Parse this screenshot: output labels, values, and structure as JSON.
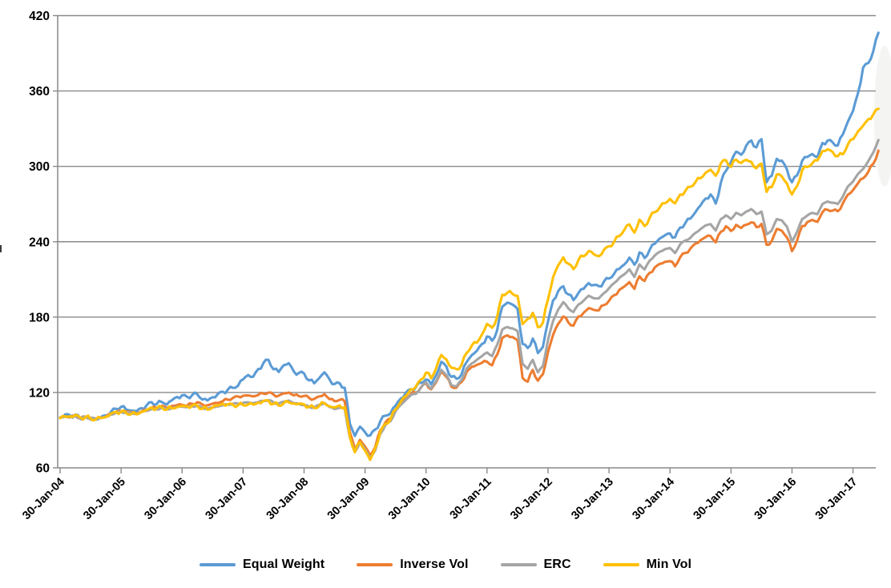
{
  "chart_data": {
    "type": "line",
    "title": "",
    "legend_position": "bottom",
    "grid": true,
    "axis_color": "#898989",
    "grid_color": "#8a8a8a",
    "text_color": "#000000",
    "y_axis": {
      "min": 60,
      "max": 420,
      "step": 60,
      "tick_labels": [
        "420",
        "360",
        "300",
        "240",
        "180",
        "120",
        "60"
      ]
    },
    "x_axis": {
      "tick_labels": [
        "30-Jan-04",
        "30-Jan-05",
        "30-Jan-06",
        "30-Jan-07",
        "30-Jan-08",
        "30-Jan-09",
        "30-Jan-10",
        "30-Jan-11",
        "30-Jan-12",
        "30-Jan-13",
        "30-Jan-14",
        "30-Jan-15",
        "30-Jan-16",
        "30-Jan-17"
      ],
      "points_per_tick": 12,
      "label_rotation_deg": -45
    },
    "series": [
      {
        "name": "Equal Weight",
        "color": "#5B9BD5",
        "values": [
          100,
          102,
          101,
          102,
          99,
          101,
          99,
          98.5,
          100,
          101,
          104,
          107,
          109,
          107,
          106,
          105,
          107,
          109,
          112,
          111,
          113,
          111,
          114,
          116,
          117,
          116,
          118,
          119,
          115,
          114,
          116,
          118,
          120,
          122,
          124,
          126,
          131,
          134,
          132,
          138,
          143,
          146,
          139,
          137,
          142,
          143,
          136,
          135,
          135,
          130,
          128,
          132,
          136,
          130,
          126,
          127,
          124,
          96,
          86,
          93,
          88,
          85,
          90,
          97,
          102,
          104,
          110,
          115,
          119,
          122,
          124,
          128,
          131,
          127,
          134,
          144,
          140,
          132,
          131,
          135,
          145,
          150,
          153,
          158,
          164,
          161,
          170,
          189,
          192,
          190,
          186,
          158,
          155,
          163,
          152,
          157,
          177,
          193,
          200,
          204,
          198,
          194,
          200,
          203,
          207,
          205,
          204,
          208,
          211,
          215,
          219,
          222,
          227,
          221,
          231,
          227,
          234,
          239,
          243,
          245,
          246,
          243,
          251,
          255,
          259,
          264,
          269,
          274,
          277,
          270,
          287,
          297,
          304,
          312,
          309,
          316,
          320,
          315,
          322,
          288,
          293,
          306,
          304,
          297,
          287,
          293,
          305,
          308,
          310,
          307,
          318,
          320,
          319,
          317,
          326,
          336,
          344,
          358,
          378,
          382,
          392,
          407
        ]
      },
      {
        "name": "Inverse Vol",
        "color": "#ED7D31",
        "values": [
          100,
          101,
          100.5,
          101.5,
          99.5,
          100.5,
          99.5,
          99,
          100,
          101,
          103,
          104.5,
          105,
          104.5,
          104,
          103.5,
          105,
          106,
          108,
          107.5,
          109,
          107.5,
          109,
          110,
          110.5,
          110,
          111,
          112,
          110,
          109.5,
          111,
          112,
          113.5,
          114.5,
          115.5,
          116.5,
          117,
          117.5,
          117,
          118.5,
          119.5,
          120,
          118,
          117,
          119,
          120,
          118,
          117.5,
          117.5,
          115.5,
          114.5,
          116.5,
          118.5,
          115,
          113.5,
          114.5,
          113,
          88,
          75,
          82,
          77,
          70,
          77,
          90,
          96,
          99,
          106,
          111,
          115,
          119,
          120,
          124,
          127,
          122,
          128,
          137,
          133,
          125,
          124,
          128,
          136,
          140,
          142,
          144,
          145,
          142,
          150,
          163,
          165,
          164,
          162,
          132,
          129,
          138,
          129,
          134,
          152,
          166,
          175,
          181,
          176,
          173,
          180,
          183,
          187,
          186,
          186,
          190,
          193,
          197,
          201,
          204,
          208,
          203,
          213,
          209,
          215,
          219,
          222,
          224,
          225,
          221,
          228,
          231,
          234,
          238,
          241,
          244,
          245,
          240,
          248,
          252,
          248,
          253,
          251,
          254,
          256,
          252,
          254,
          237,
          240,
          250,
          249,
          244,
          233,
          241,
          252,
          255,
          257,
          256,
          264,
          266,
          265,
          264,
          270,
          277,
          281,
          287,
          291,
          296,
          302,
          312
        ]
      },
      {
        "name": "ERC",
        "color": "#A5A5A5",
        "values": [
          100,
          101,
          100.5,
          101.5,
          99.5,
          100.5,
          99.5,
          99,
          100,
          100.5,
          102.5,
          104,
          104.5,
          104,
          103.5,
          103,
          104.5,
          105.5,
          107,
          106.5,
          108,
          106.5,
          107.5,
          108.5,
          109,
          108.5,
          109,
          109.5,
          107.5,
          107,
          108,
          109,
          110,
          110.5,
          111,
          111,
          111.5,
          112,
          111.5,
          112.5,
          113.5,
          114,
          112,
          111,
          112.5,
          113.5,
          111.5,
          111,
          110,
          108.5,
          108,
          110,
          111.5,
          108.5,
          107,
          108,
          107,
          84,
          72.5,
          80,
          75,
          68,
          74,
          87,
          94,
          97,
          105,
          110,
          114,
          118,
          119,
          124,
          128,
          123,
          129,
          138,
          134,
          126,
          125,
          130,
          139,
          143,
          146,
          149,
          152,
          149,
          158,
          170,
          172,
          171,
          169,
          143,
          139,
          146,
          136,
          141,
          162,
          177,
          186,
          192,
          187,
          184,
          190,
          193,
          197,
          195,
          195,
          199,
          203,
          207,
          211,
          214,
          218,
          212,
          222,
          218,
          225,
          229,
          232,
          234,
          235,
          231,
          238,
          241,
          243,
          247,
          250,
          253,
          254,
          249,
          258,
          261,
          258,
          263,
          261,
          264,
          266,
          262,
          264,
          246,
          249,
          258,
          257,
          252,
          240,
          248,
          258,
          261,
          263,
          262,
          270,
          272,
          271,
          270,
          276,
          284,
          288,
          294,
          298,
          304,
          311,
          321
        ]
      },
      {
        "name": "Min Vol",
        "color": "#FFC000",
        "values": [
          100,
          101,
          100.5,
          101.5,
          99.5,
          100.5,
          99.5,
          99,
          100,
          100.5,
          102.5,
          104,
          104.5,
          104,
          103.5,
          103,
          104.5,
          105.5,
          107.5,
          107,
          108.5,
          107,
          108,
          108.5,
          109,
          108.5,
          109,
          109.5,
          107.5,
          107,
          108.5,
          109.5,
          110.5,
          110,
          110,
          110,
          110.5,
          111,
          110.5,
          111.5,
          112.5,
          113,
          111,
          110,
          112,
          112.5,
          111,
          110.5,
          110,
          108.5,
          108,
          110,
          112,
          109,
          107.5,
          109,
          108,
          85,
          73,
          81,
          74,
          66,
          75,
          88,
          95,
          99,
          107,
          113,
          117,
          122,
          124,
          130,
          136,
          132,
          140,
          150,
          146,
          139,
          138,
          142,
          152,
          158,
          160,
          166,
          174,
          171,
          180,
          198,
          200,
          199,
          197,
          174,
          178,
          183,
          172,
          176,
          195,
          212,
          221,
          227,
          222,
          218,
          226,
          229,
          233,
          230,
          228,
          233,
          236,
          240,
          245,
          250,
          254,
          247,
          257,
          252,
          259,
          264,
          268,
          271,
          274,
          270,
          277,
          280,
          284,
          288,
          291,
          295,
          297,
          292,
          302,
          305,
          300,
          306,
          303,
          305,
          303,
          298,
          302,
          280,
          284,
          294,
          292,
          286,
          277,
          284,
          297,
          300,
          303,
          305,
          312,
          313,
          311,
          308,
          310,
          318,
          322,
          328,
          332,
          337,
          341,
          346
        ]
      }
    ]
  }
}
